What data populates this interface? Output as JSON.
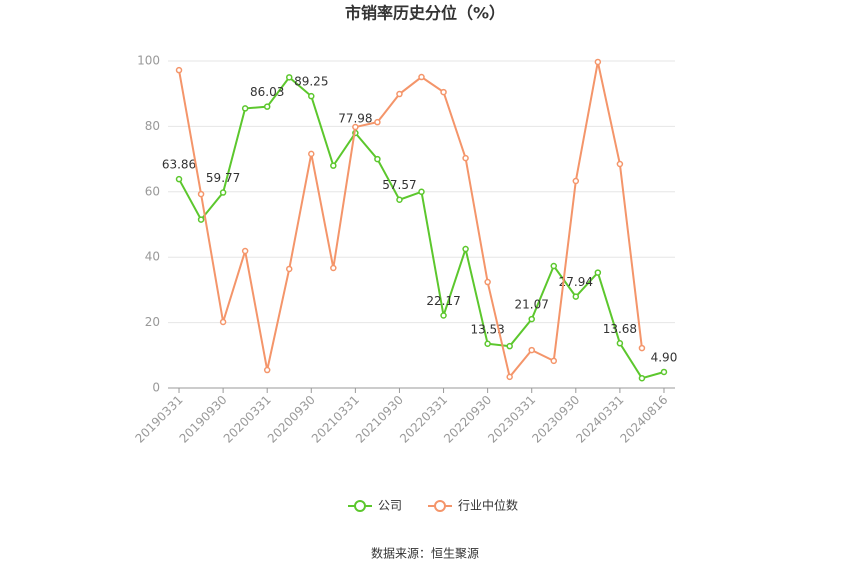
{
  "chart_data": {
    "type": "line",
    "title": "市销率历史分位（%）",
    "categories": [
      "20190331",
      null,
      "20190930",
      null,
      "20200331",
      null,
      "20200930",
      null,
      "20210331",
      null,
      "20210930",
      null,
      "20220331",
      null,
      "20220930",
      null,
      "20230331",
      null,
      "20230930",
      null,
      "20240331",
      null,
      "20240816"
    ],
    "series": [
      {
        "name": "公司",
        "color": "#5cc72d",
        "values": [
          63.86,
          51.5,
          59.77,
          85.5,
          86.03,
          95,
          89.25,
          68,
          77.98,
          70,
          57.57,
          60,
          22.17,
          42.5,
          13.53,
          12.8,
          21.07,
          37.3,
          27.94,
          35.3,
          13.68,
          3,
          4.9
        ],
        "value_labels": [
          "63.86",
          null,
          "59.77",
          null,
          "86.03",
          null,
          "89.25",
          null,
          "77.98",
          null,
          "57.57",
          null,
          "22.17",
          null,
          "13.53",
          null,
          "21.07",
          null,
          "27.94",
          null,
          "13.68",
          null,
          "4.90"
        ]
      },
      {
        "name": "行业中位数",
        "color": "#f4956a",
        "values": [
          97.2,
          59.3,
          20.2,
          41.9,
          5.5,
          36.4,
          71.6,
          36.7,
          79.8,
          81.3,
          89.9,
          95.1,
          90.5,
          70.3,
          32.4,
          3.4,
          11.6,
          8.3,
          63.3,
          99.7,
          68.5,
          12.2,
          null
        ]
      }
    ],
    "ylim": [
      0,
      100
    ],
    "yticks": [
      0,
      20,
      40,
      60,
      80,
      100
    ],
    "grid": true,
    "source": "数据来源：恒生聚源"
  }
}
